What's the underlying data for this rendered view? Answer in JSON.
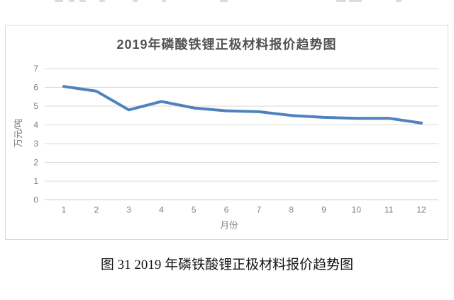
{
  "figure": {
    "title": "2019年磷酸铁锂正极材料报价趋势图"
  },
  "caption": {
    "text": "图 31 2019 年磷铁酸锂正极材料报价趋势图"
  },
  "chart_data": {
    "type": "line",
    "title": "2019年磷酸铁锂正极材料报价趋势图",
    "categories": [
      "1",
      "2",
      "3",
      "4",
      "5",
      "6",
      "7",
      "8",
      "9",
      "10",
      "11",
      "12"
    ],
    "values": [
      6.05,
      5.8,
      4.8,
      5.25,
      4.9,
      4.75,
      4.7,
      4.5,
      4.4,
      4.35,
      4.35,
      4.1
    ],
    "xlabel": "月份",
    "ylabel": "万元/吨",
    "ylim": [
      0,
      7
    ],
    "y_ticks": [
      0,
      1,
      2,
      3,
      4,
      5,
      6,
      7
    ],
    "grid": true,
    "legend": false,
    "line_color": "#4e81bd",
    "gridline_color": "#d9d9d9",
    "baseline_color": "#c8c8c8",
    "tick_color": "#7f7f7f"
  }
}
